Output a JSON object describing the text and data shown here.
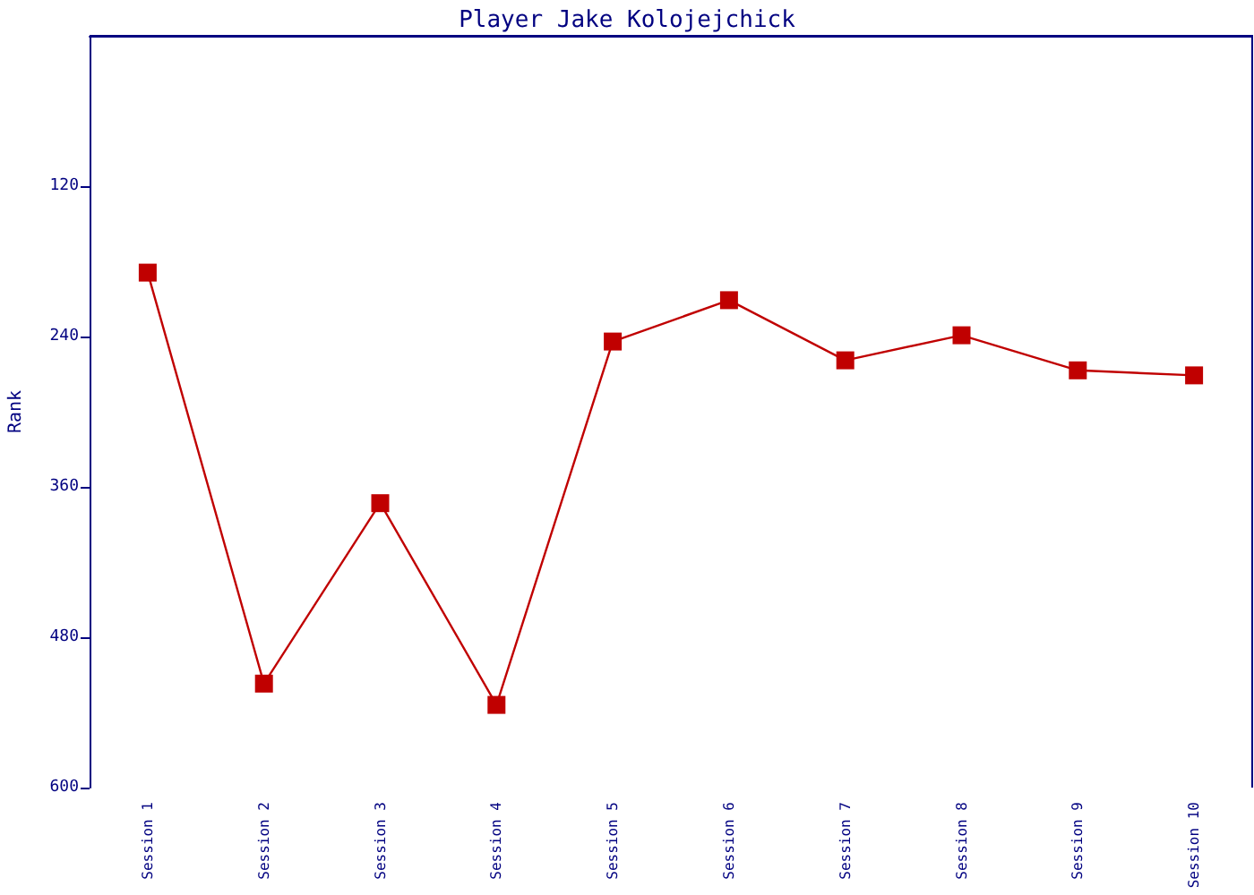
{
  "chart_data": {
    "type": "line",
    "title": "Player Jake Kolojejchick",
    "ylabel": "Rank",
    "categories": [
      "Session 1",
      "Session 2",
      "Session 3",
      "Session 4",
      "Session 5",
      "Session 6",
      "Session 7",
      "Session 8",
      "Session 9",
      "Session 10"
    ],
    "series": [
      {
        "color": "#c00000",
        "values": [
          189,
          517,
          373,
          534,
          244,
          211,
          259,
          239,
          267,
          271
        ]
      }
    ],
    "ylim": [
      600,
      0
    ],
    "yticks": [
      120,
      240,
      360,
      480,
      600
    ],
    "grid": false,
    "marker": "square",
    "line_style": "solid"
  }
}
